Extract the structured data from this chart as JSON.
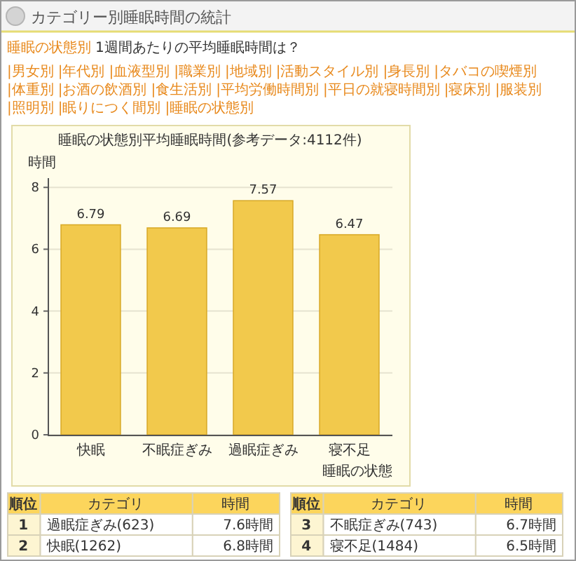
{
  "chart_data": {
    "type": "bar",
    "title": "睡眠の状態別平均睡眠時間(参考データ:4112件)",
    "xlabel": "睡眠の状態",
    "ylabel": "時間",
    "categories": [
      "快眠",
      "不眠症ぎみ",
      "過眠症ぎみ",
      "寝不足"
    ],
    "values": [
      6.79,
      6.69,
      7.57,
      6.47
    ],
    "color": "#f2c94c",
    "data_labels": true,
    "ylim": [
      0,
      8.3
    ],
    "yticks": [
      0,
      2,
      4,
      6,
      8
    ],
    "grid": "y",
    "annotations": [
      "カテゴリー別睡眠時間の統計",
      "睡眠の状態別",
      "1週間あたりの平均睡眠時間は？",
      "|男女別",
      "|年代別",
      "|血液型別",
      "|職業別",
      "|地域別",
      "|活動スタイル別",
      "|身長別",
      "|タバコの喫煙別",
      "|体重別",
      "|お酒の飲酒別",
      "|食生活別",
      "|平均労働時間別",
      "|平日の就寝時間別",
      "|寝床別",
      "|服装別",
      "|照明別",
      "|眠りにつく間別",
      "|睡眠の状態別",
      "順位",
      "カテゴリ",
      "時間",
      "1",
      "過眠症ぎみ(623)",
      "7.6時間",
      "2",
      "快眠(1262)",
      "6.8時間",
      "順位",
      "カテゴリ",
      "時間",
      "3",
      "不眠症ぎみ(743)",
      "6.7時間",
      "4",
      "寝不足(1484)",
      "6.5時間"
    ]
  }
}
